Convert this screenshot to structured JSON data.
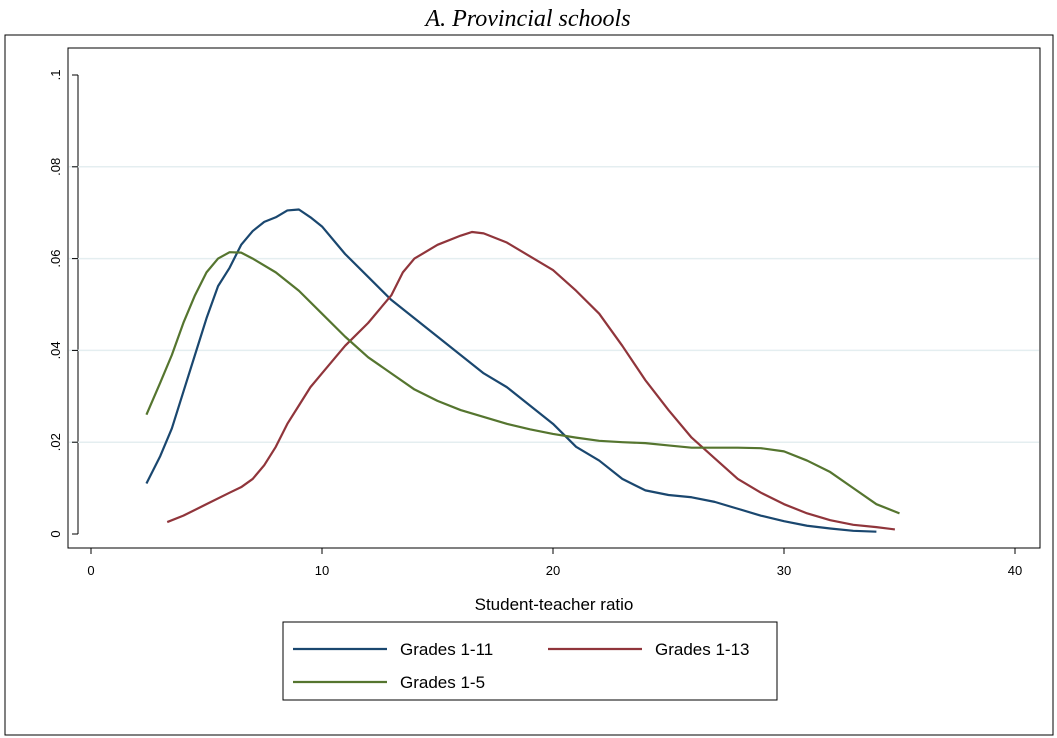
{
  "chart_data": {
    "type": "line",
    "title": "A.  Provincial schools",
    "xlabel": "Student-teacher ratio",
    "xlim": [
      0,
      40
    ],
    "xticks": [
      0,
      10,
      20,
      30,
      40
    ],
    "ylim": [
      0,
      0.1
    ],
    "yticks": [
      0,
      {
        "value": 0.02,
        "label": ".02"
      },
      {
        "value": 0.04,
        "label": ".04"
      },
      {
        "value": 0.06,
        "label": ".06"
      },
      {
        "value": 0.08,
        "label": ".08"
      },
      {
        "value": 0.1,
        "label": ".1"
      }
    ],
    "grid": true,
    "legend": "bottom",
    "series": [
      {
        "name": "Grades 1-11",
        "color": "#1a476f",
        "x": [
          2.4,
          3,
          3.5,
          4,
          4.5,
          5,
          5.5,
          6,
          6.5,
          7,
          7.5,
          8,
          8.5,
          9,
          9.5,
          10,
          11,
          12,
          13,
          14,
          15,
          16,
          17,
          18,
          19,
          20,
          21,
          22,
          23,
          24,
          25,
          26,
          27,
          28,
          29,
          30,
          31,
          32,
          33,
          34
        ],
        "values": [
          0.011,
          0.017,
          0.023,
          0.031,
          0.039,
          0.047,
          0.054,
          0.058,
          0.063,
          0.066,
          0.068,
          0.069,
          0.0705,
          0.0707,
          0.069,
          0.067,
          0.061,
          0.056,
          0.051,
          0.047,
          0.043,
          0.039,
          0.035,
          0.032,
          0.028,
          0.024,
          0.019,
          0.016,
          0.012,
          0.0095,
          0.0085,
          0.008,
          0.007,
          0.0055,
          0.004,
          0.0028,
          0.0018,
          0.0012,
          0.0007,
          0.0005
        ]
      },
      {
        "name": "Grades 1-13",
        "color": "#90353b",
        "x": [
          3.3,
          4,
          5,
          6,
          6.5,
          7,
          7.5,
          8,
          8.5,
          9,
          9.5,
          10,
          11,
          12,
          13,
          13.5,
          14,
          15,
          16,
          16.5,
          17,
          18,
          19,
          20,
          21,
          22,
          23,
          24,
          25,
          26,
          27,
          28,
          29,
          30,
          31,
          32,
          33,
          34,
          34.8
        ],
        "values": [
          0.0026,
          0.004,
          0.0065,
          0.009,
          0.0102,
          0.012,
          0.015,
          0.019,
          0.024,
          0.028,
          0.032,
          0.035,
          0.041,
          0.046,
          0.052,
          0.057,
          0.06,
          0.063,
          0.065,
          0.0658,
          0.0655,
          0.0635,
          0.0605,
          0.0575,
          0.053,
          0.048,
          0.041,
          0.0335,
          0.027,
          0.021,
          0.0165,
          0.012,
          0.009,
          0.0065,
          0.0045,
          0.003,
          0.002,
          0.0015,
          0.001
        ]
      },
      {
        "name": "Grades 1-5",
        "color": "#55752f",
        "x": [
          2.4,
          3,
          3.5,
          4,
          4.5,
          5,
          5.5,
          6,
          6.5,
          7,
          8,
          9,
          10,
          11,
          12,
          13,
          14,
          15,
          16,
          17,
          18,
          19,
          20,
          21,
          22,
          23,
          24,
          25,
          26,
          27,
          28,
          29,
          30,
          31,
          32,
          33,
          34,
          35
        ],
        "values": [
          0.026,
          0.033,
          0.039,
          0.046,
          0.052,
          0.057,
          0.06,
          0.0614,
          0.0613,
          0.06,
          0.057,
          0.053,
          0.048,
          0.043,
          0.0385,
          0.035,
          0.0315,
          0.029,
          0.027,
          0.0255,
          0.024,
          0.0228,
          0.0218,
          0.021,
          0.0203,
          0.02,
          0.0198,
          0.0193,
          0.0188,
          0.0188,
          0.0188,
          0.0187,
          0.018,
          0.016,
          0.0135,
          0.01,
          0.0065,
          0.0045
        ]
      }
    ]
  }
}
